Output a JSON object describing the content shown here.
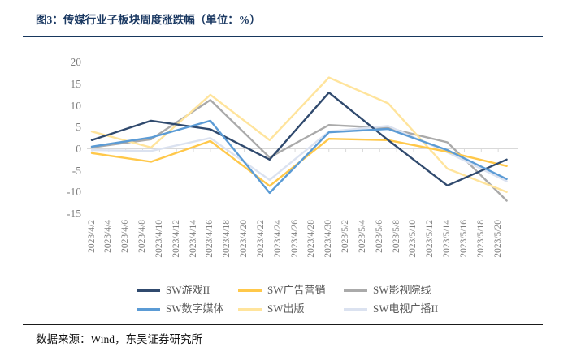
{
  "page": {
    "title": "图3：传媒行业子板块周度涨跌幅（单位：%）",
    "source_note": "数据来源：Wind，东吴证券研究所"
  },
  "chart_data": {
    "type": "line",
    "title": "传媒行业子板块周度涨跌幅",
    "unit": "%",
    "ylim": [
      -15,
      20
    ],
    "y_ticks": [
      20,
      15,
      10,
      5,
      0,
      -5,
      -10,
      -15
    ],
    "grid": false,
    "legend_position": "bottom",
    "axis_color": "#D9D9D9",
    "label_color": "#7F7F7F",
    "x_tick_labels": [
      "2023/4/2",
      "2023/4/4",
      "2023/4/6",
      "2023/4/8",
      "2023/4/10",
      "2023/4/12",
      "2023/4/14",
      "2023/4/16",
      "2023/4/18",
      "2023/4/20",
      "2023/4/22",
      "2023/4/24",
      "2023/4/26",
      "2023/4/28",
      "2023/4/30",
      "2023/5/2",
      "2023/5/4",
      "2023/5/6",
      "2023/5/8",
      "2023/5/10",
      "2023/5/12",
      "2023/5/14",
      "2023/5/16",
      "2023/5/18",
      "2023/5/20"
    ],
    "x_units": [
      0,
      3.5,
      7,
      10.5,
      14,
      17.5,
      21,
      24.5
    ],
    "series": [
      {
        "name": "SW游戏II",
        "color": "#304A6E",
        "values": [
          2,
          6.5,
          4.5,
          -2.5,
          13,
          2,
          -8.5,
          -2.5
        ]
      },
      {
        "name": "SW广告营销",
        "color": "#FFC84A",
        "values": [
          -1,
          -3,
          1.8,
          -8.6,
          2.3,
          2,
          -0.7,
          -4
        ]
      },
      {
        "name": "SW影视院线",
        "color": "#AAAAAA",
        "values": [
          0.3,
          2.2,
          11.3,
          -2,
          5.5,
          4.8,
          1.5,
          -12
        ]
      },
      {
        "name": "SW数字媒体",
        "color": "#5B9BD5",
        "values": [
          0.5,
          2.6,
          6.5,
          -10.2,
          3.8,
          4.6,
          -0.3,
          -7
        ]
      },
      {
        "name": "SW出版",
        "color": "#FFE49C",
        "values": [
          4,
          0.3,
          12.5,
          2,
          16.5,
          10.5,
          -4.6,
          -10
        ]
      },
      {
        "name": "SW电视广播II",
        "color": "#DBE2F0",
        "values": [
          -0.3,
          -0.5,
          2.5,
          -7.2,
          4,
          5.3,
          -0.8,
          -7.5
        ]
      }
    ]
  }
}
